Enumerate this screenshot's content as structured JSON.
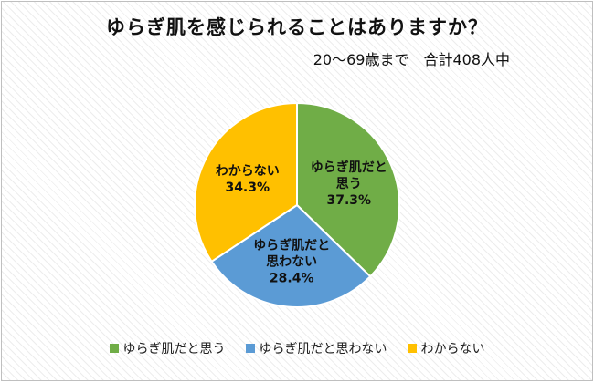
{
  "chart_data": {
    "type": "pie",
    "title": "ゆらぎ肌を感じられることはありますか？",
    "subtitle": "20～69歳まで　合計408人中",
    "slices": [
      {
        "label_lines": [
          "ゆらぎ肌だと",
          "思う"
        ],
        "legend": "ゆらぎ肌だと思う",
        "value": 37.3,
        "value_text": "37.3%",
        "color": "#70ad47"
      },
      {
        "label_lines": [
          "ゆらぎ肌だと",
          "思わない"
        ],
        "legend": "ゆらぎ肌だと思わない",
        "value": 28.4,
        "value_text": "28.4%",
        "color": "#5b9bd5"
      },
      {
        "label_lines": [
          "わからない"
        ],
        "legend": "わからない",
        "value": 34.3,
        "value_text": "34.3%",
        "color": "#ffc000"
      }
    ],
    "legend_position": "bottom",
    "start_angle": "12 o'clock, clockwise"
  }
}
